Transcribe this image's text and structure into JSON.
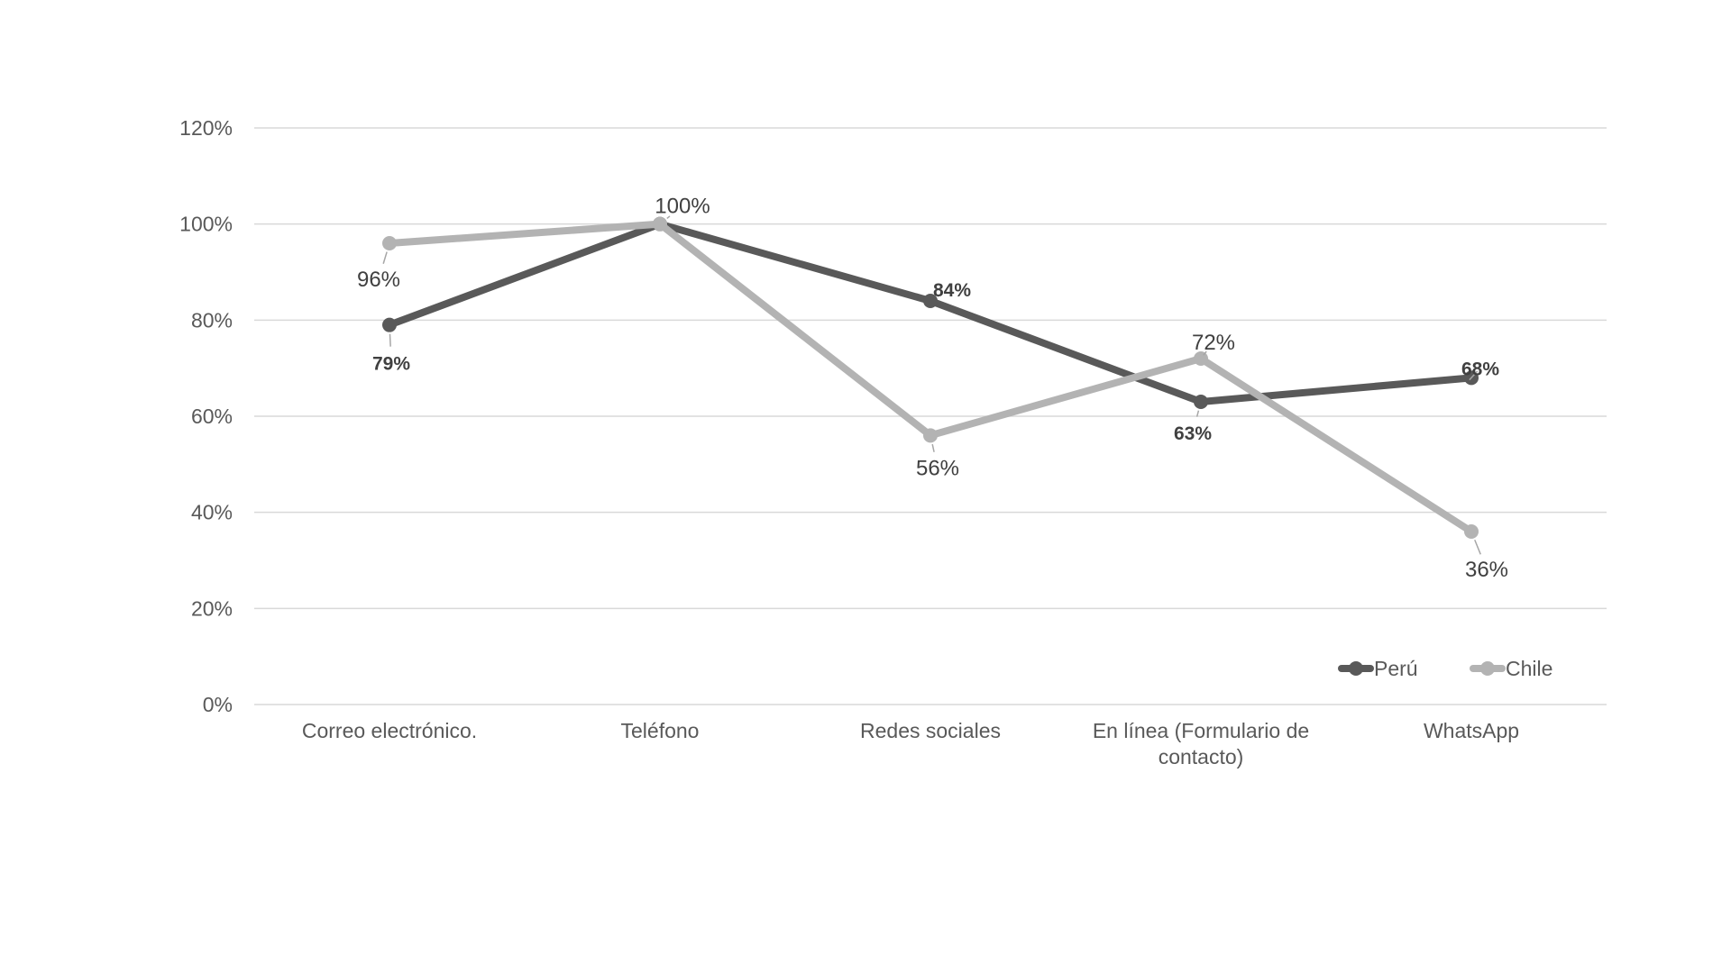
{
  "chart_data": {
    "type": "line",
    "title": "",
    "xlabel": "",
    "ylabel": "",
    "ylim": [
      0,
      120
    ],
    "y_ticks": [
      "0%",
      "20%",
      "40%",
      "60%",
      "80%",
      "100%",
      "120%"
    ],
    "grid": true,
    "legend_position": "bottom-right",
    "categories": [
      [
        "Correo electrónico."
      ],
      [
        "Teléfono"
      ],
      [
        "Redes sociales"
      ],
      [
        "En línea (Formulario de",
        "contacto)"
      ],
      [
        "WhatsApp"
      ]
    ],
    "series": [
      {
        "name": "Perú",
        "color": "#595959",
        "values": [
          79,
          100,
          84,
          63,
          68
        ],
        "labels": [
          "79%",
          "",
          "84%",
          "63%",
          "68%"
        ]
      },
      {
        "name": "Chile",
        "color": "#b3b3b3",
        "values": [
          96,
          100,
          56,
          72,
          36
        ],
        "labels": [
          "96%",
          "100%",
          "56%",
          "72%",
          "36%"
        ]
      }
    ]
  }
}
